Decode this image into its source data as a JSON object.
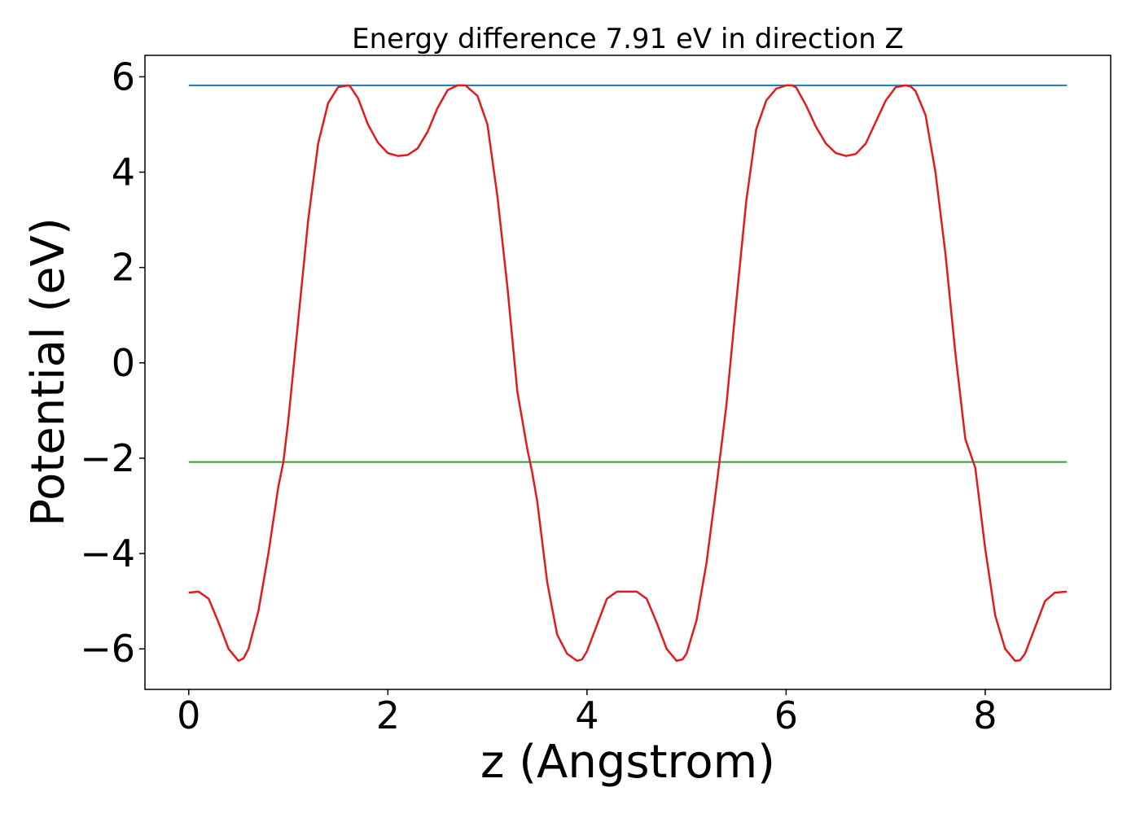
{
  "chart_data": {
    "type": "line",
    "title": "Energy difference 7.91 eV in direction Z",
    "xlabel": "z (Angstrom)",
    "ylabel": "Potential (eV)",
    "xlim": [
      -0.44,
      9.26
    ],
    "ylim": [
      -6.85,
      6.45
    ],
    "xticks": [
      0,
      2,
      4,
      6,
      8
    ],
    "xtick_labels": [
      "0",
      "2",
      "4",
      "6",
      "8"
    ],
    "yticks": [
      -6,
      -4,
      -2,
      0,
      2,
      4,
      6
    ],
    "ytick_labels": [
      "−6",
      "−4",
      "−2",
      "0",
      "2",
      "4",
      "6"
    ],
    "grid": false,
    "legend": "none",
    "series": [
      {
        "color": "#1f77b4",
        "x": [
          0,
          8.82
        ],
        "y": [
          5.82,
          5.82
        ]
      },
      {
        "color": "#2ca02c",
        "x": [
          0,
          8.82
        ],
        "y": [
          -2.08,
          -2.08
        ]
      },
      {
        "color": "#e31a1c",
        "x": [
          0.0,
          0.1,
          0.2,
          0.3,
          0.4,
          0.5,
          0.55,
          0.6,
          0.7,
          0.8,
          0.9,
          0.95,
          1.0,
          1.1,
          1.2,
          1.3,
          1.4,
          1.5,
          1.6,
          1.62,
          1.7,
          1.8,
          1.9,
          2.0,
          2.1,
          2.2,
          2.3,
          2.4,
          2.5,
          2.6,
          2.7,
          2.78,
          2.9,
          3.0,
          3.1,
          3.2,
          3.3,
          3.4,
          3.45,
          3.5,
          3.6,
          3.7,
          3.8,
          3.9,
          3.95,
          4.0,
          4.1,
          4.2,
          4.3,
          4.41,
          4.5,
          4.6,
          4.7,
          4.8,
          4.9,
          4.96,
          5.0,
          5.1,
          5.2,
          5.3,
          5.4,
          5.5,
          5.6,
          5.7,
          5.8,
          5.9,
          6.0,
          6.06,
          6.1,
          6.2,
          6.3,
          6.4,
          6.5,
          6.6,
          6.7,
          6.8,
          6.9,
          7.0,
          7.1,
          7.2,
          7.25,
          7.3,
          7.4,
          7.5,
          7.6,
          7.7,
          7.8,
          7.9,
          8.0,
          8.1,
          8.2,
          8.3,
          8.35,
          8.4,
          8.5,
          8.6,
          8.7,
          8.82
        ],
        "y": [
          -4.82,
          -4.8,
          -4.95,
          -5.45,
          -6.0,
          -6.25,
          -6.2,
          -6.0,
          -5.2,
          -4.0,
          -2.6,
          -2.08,
          -1.2,
          0.9,
          3.0,
          4.6,
          5.45,
          5.78,
          5.82,
          5.8,
          5.55,
          5.0,
          4.62,
          4.4,
          4.34,
          4.36,
          4.5,
          4.85,
          5.35,
          5.72,
          5.82,
          5.82,
          5.6,
          5.0,
          3.5,
          1.6,
          -0.6,
          -1.8,
          -2.3,
          -2.9,
          -4.6,
          -5.7,
          -6.1,
          -6.25,
          -6.22,
          -6.05,
          -5.5,
          -4.95,
          -4.8,
          -4.8,
          -4.8,
          -4.95,
          -5.45,
          -6.0,
          -6.25,
          -6.22,
          -6.1,
          -5.4,
          -4.2,
          -2.6,
          -0.9,
          1.3,
          3.4,
          4.9,
          5.5,
          5.75,
          5.82,
          5.82,
          5.78,
          5.4,
          4.95,
          4.6,
          4.4,
          4.34,
          4.38,
          4.6,
          5.05,
          5.5,
          5.78,
          5.82,
          5.8,
          5.7,
          5.2,
          4.0,
          2.3,
          0.2,
          -1.6,
          -2.2,
          -3.9,
          -5.3,
          -6.0,
          -6.25,
          -6.24,
          -6.1,
          -5.55,
          -5.0,
          -4.82,
          -4.8
        ]
      }
    ]
  }
}
